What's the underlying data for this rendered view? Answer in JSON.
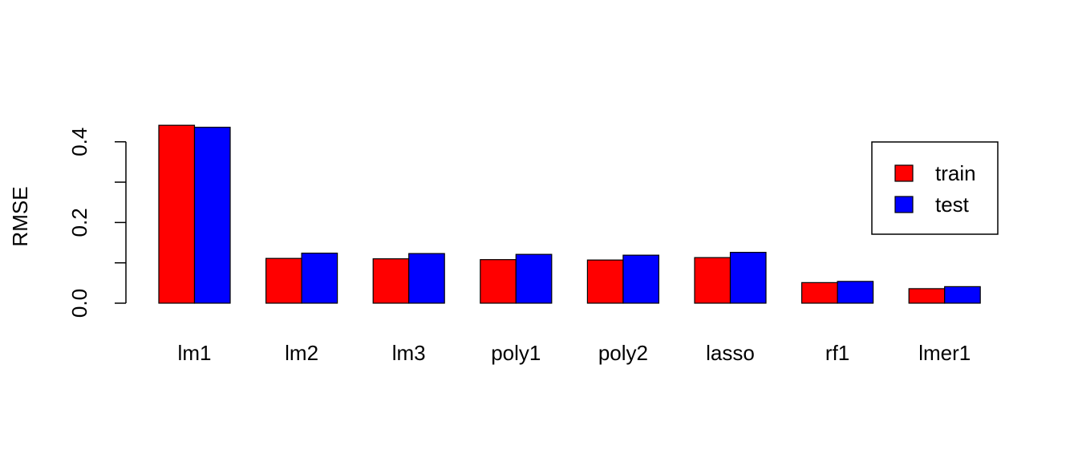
{
  "chart_data": {
    "type": "bar",
    "title": "",
    "xlabel": "",
    "ylabel": "RMSE",
    "ylim": [
      0,
      0.44
    ],
    "yticks": [
      0.0,
      0.1,
      0.2,
      0.3,
      0.4
    ],
    "ytick_labels": [
      "0.0",
      "",
      "0.2",
      "",
      "0.4"
    ],
    "categories": [
      "lm1",
      "lm2",
      "lm3",
      "poly1",
      "poly2",
      "lasso",
      "rf1",
      "lmer1"
    ],
    "series": [
      {
        "name": "train",
        "color": "#ff0000",
        "values": [
          0.441,
          0.111,
          0.11,
          0.108,
          0.107,
          0.113,
          0.051,
          0.036
        ]
      },
      {
        "name": "test",
        "color": "#0000ff",
        "values": [
          0.436,
          0.124,
          0.123,
          0.121,
          0.119,
          0.126,
          0.054,
          0.041
        ]
      }
    ],
    "legend": {
      "position": "top-right",
      "entries": [
        "train",
        "test"
      ]
    },
    "grid": false
  }
}
